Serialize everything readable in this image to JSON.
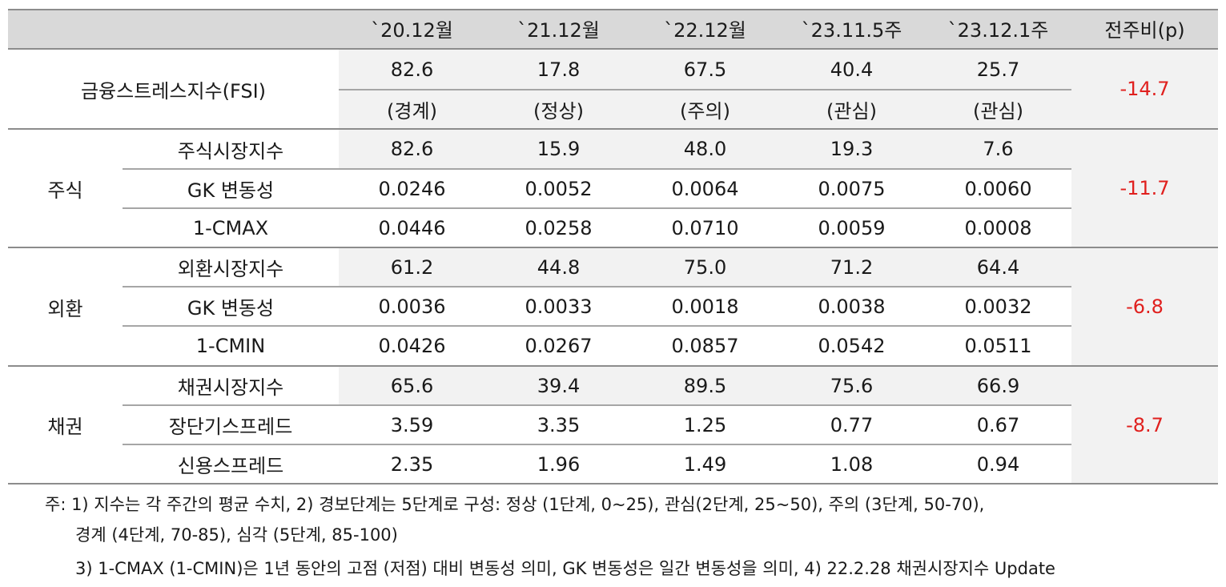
{
  "header": {
    "columns": [
      "`20.12월",
      "`21.12월",
      "`22.12월",
      "`23.11.5주",
      "`23.12.1주",
      "전주비(p)"
    ]
  },
  "fsi": {
    "label": "금융스트레스지수(FSI)",
    "values": [
      "82.6",
      "17.8",
      "67.5",
      "40.4",
      "25.7"
    ],
    "stages": [
      "(경계)",
      "(정상)",
      "(주의)",
      "(관심)",
      "(관심)"
    ],
    "change": "-14.7"
  },
  "stock": {
    "group": "주식",
    "change": "-11.7",
    "rows": [
      {
        "label": "주식시장지수",
        "values": [
          "82.6",
          "15.9",
          "48.0",
          "19.3",
          "7.6"
        ]
      },
      {
        "label": "GK 변동성",
        "values": [
          "0.0246",
          "0.0052",
          "0.0064",
          "0.0075",
          "0.0060"
        ]
      },
      {
        "label": "1-CMAX",
        "values": [
          "0.0446",
          "0.0258",
          "0.0710",
          "0.0059",
          "0.0008"
        ]
      }
    ]
  },
  "fx": {
    "group": "외환",
    "change": "-6.8",
    "rows": [
      {
        "label": "외환시장지수",
        "values": [
          "61.2",
          "44.8",
          "75.0",
          "71.2",
          "64.4"
        ]
      },
      {
        "label": "GK 변동성",
        "values": [
          "0.0036",
          "0.0033",
          "0.0018",
          "0.0038",
          "0.0032"
        ]
      },
      {
        "label": "1-CMIN",
        "values": [
          "0.0426",
          "0.0267",
          "0.0857",
          "0.0542",
          "0.0511"
        ]
      }
    ]
  },
  "bond": {
    "group": "채권",
    "change": "-8.7",
    "rows": [
      {
        "label": "채권시장지수",
        "values": [
          "65.6",
          "39.4",
          "89.5",
          "75.6",
          "66.9"
        ]
      },
      {
        "label": "장단기스프레드",
        "values": [
          "3.59",
          "3.35",
          "1.25",
          "0.77",
          "0.67"
        ]
      },
      {
        "label": "신용스프레드",
        "values": [
          "2.35",
          "1.96",
          "1.49",
          "1.08",
          "0.94"
        ]
      }
    ]
  },
  "notes": {
    "line1": "주: 1) 지수는 각 주간의 평균 수치, 2) 경보단계는 5단계로 구성: 정상 (1단계, 0~25), 관심(2단계, 25~50), 주의 (3단계, 50-70),",
    "line2": "경계 (4단계, 70-85), 심각 (5단계, 85-100)",
    "line3": "3) 1-CMAX (1-CMIN)은 1년 동안의 고점 (저점) 대비 변동성 의미, GK 변동성은 일간 변동성을 의미, 4) 22.2.28 채권시장지수 Update"
  },
  "colors": {
    "header_bg": "#d9d9d9",
    "row_bg": "#f2f2f2",
    "change_red": "#e0201e"
  }
}
